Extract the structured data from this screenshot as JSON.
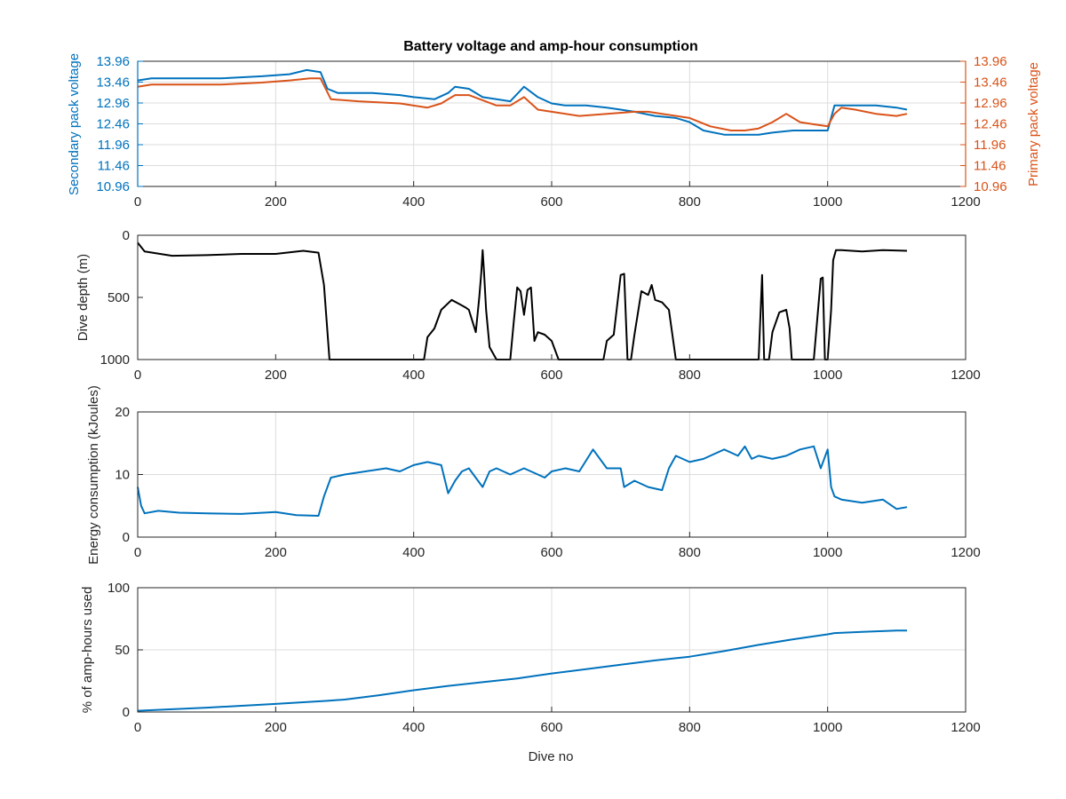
{
  "figure": {
    "title": "Battery voltage and amp-hour consumption"
  },
  "chart_data": [
    {
      "type": "line",
      "title": "Battery voltage and amp-hour consumption",
      "xlabel": "",
      "ylabel": "Secondary pack voltage",
      "y2label": "Primary pack voltage",
      "xlim": [
        0,
        1200
      ],
      "ylim": [
        10.96,
        13.96
      ],
      "y2lim": [
        10.96,
        13.96
      ],
      "xticks": [
        "0",
        "200",
        "400",
        "600",
        "800",
        "1000",
        "1200"
      ],
      "yticks": [
        "10.96",
        "11.46",
        "11.96",
        "12.46",
        "12.96",
        "13.46",
        "13.96"
      ],
      "y2ticks": [
        "10.96",
        "11.46",
        "11.96",
        "12.46",
        "12.96",
        "13.46",
        "13.96"
      ],
      "grid": true,
      "colors": {
        "secondary": "#0072BD",
        "primary": "#D95319"
      },
      "series": [
        {
          "axis": "left",
          "color": "#0072BD",
          "x": [
            0,
            20,
            60,
            120,
            180,
            220,
            245,
            265,
            275,
            290,
            340,
            380,
            400,
            430,
            450,
            460,
            480,
            500,
            520,
            540,
            560,
            580,
            600,
            620,
            650,
            680,
            700,
            720,
            750,
            780,
            800,
            820,
            850,
            880,
            900,
            920,
            950,
            980,
            1000,
            1010,
            1040,
            1070,
            1100,
            1115
          ],
          "y": [
            13.5,
            13.55,
            13.55,
            13.55,
            13.6,
            13.65,
            13.75,
            13.7,
            13.3,
            13.2,
            13.2,
            13.15,
            13.1,
            13.05,
            13.2,
            13.35,
            13.3,
            13.1,
            13.05,
            13.0,
            13.35,
            13.1,
            12.95,
            12.9,
            12.9,
            12.85,
            12.8,
            12.75,
            12.65,
            12.6,
            12.5,
            12.3,
            12.2,
            12.2,
            12.2,
            12.25,
            12.3,
            12.3,
            12.3,
            12.9,
            12.9,
            12.9,
            12.85,
            12.8
          ]
        },
        {
          "axis": "right",
          "color": "#D95319",
          "x": [
            0,
            20,
            60,
            120,
            180,
            220,
            250,
            265,
            280,
            320,
            380,
            420,
            440,
            460,
            480,
            520,
            540,
            560,
            580,
            600,
            640,
            680,
            720,
            740,
            760,
            800,
            830,
            860,
            880,
            900,
            920,
            940,
            960,
            980,
            1000,
            1010,
            1020,
            1040,
            1070,
            1100,
            1115
          ],
          "y": [
            13.35,
            13.4,
            13.4,
            13.4,
            13.45,
            13.5,
            13.55,
            13.55,
            13.05,
            13.0,
            12.95,
            12.85,
            12.95,
            13.15,
            13.15,
            12.9,
            12.9,
            13.1,
            12.8,
            12.75,
            12.65,
            12.7,
            12.75,
            12.75,
            12.7,
            12.6,
            12.4,
            12.3,
            12.3,
            12.35,
            12.5,
            12.7,
            12.5,
            12.45,
            12.4,
            12.7,
            12.85,
            12.8,
            12.7,
            12.65,
            12.7
          ]
        }
      ]
    },
    {
      "type": "line",
      "xlabel": "",
      "ylabel": "Dive depth (m)",
      "xlim": [
        0,
        1200
      ],
      "ylim": [
        1000,
        0
      ],
      "xticks": [
        "0",
        "200",
        "400",
        "600",
        "800",
        "1000",
        "1200"
      ],
      "yticks": [
        "0",
        "500",
        "1000"
      ],
      "grid": false,
      "series": [
        {
          "color": "#000000",
          "x": [
            0,
            10,
            50,
            100,
            150,
            200,
            240,
            262,
            270,
            278,
            300,
            350,
            400,
            415,
            420,
            430,
            440,
            455,
            465,
            475,
            480,
            490,
            495,
            498,
            500,
            502,
            505,
            510,
            520,
            540,
            545,
            550,
            555,
            560,
            565,
            570,
            575,
            580,
            590,
            600,
            610,
            650,
            675,
            680,
            690,
            700,
            705,
            710,
            715,
            720,
            730,
            740,
            745,
            750,
            760,
            770,
            780,
            800,
            850,
            900,
            905,
            908,
            912,
            915,
            920,
            930,
            940,
            945,
            948,
            950,
            960,
            980,
            990,
            993,
            996,
            1000,
            1005,
            1008,
            1012,
            1020,
            1050,
            1080,
            1115
          ],
          "y": [
            60,
            130,
            165,
            160,
            150,
            150,
            125,
            140,
            400,
            1000,
            1000,
            1000,
            1000,
            1000,
            820,
            750,
            600,
            520,
            550,
            580,
            600,
            780,
            500,
            300,
            120,
            300,
            600,
            900,
            1000,
            1000,
            700,
            420,
            450,
            640,
            440,
            420,
            850,
            780,
            800,
            850,
            1000,
            1000,
            1000,
            850,
            800,
            320,
            310,
            1000,
            1000,
            800,
            450,
            480,
            400,
            520,
            540,
            600,
            1000,
            1000,
            1000,
            1000,
            320,
            1000,
            1000,
            1000,
            780,
            620,
            600,
            750,
            1000,
            1000,
            1000,
            1000,
            350,
            340,
            1000,
            1000,
            600,
            200,
            120,
            120,
            130,
            120,
            125
          ]
        }
      ]
    },
    {
      "type": "line",
      "xlabel": "",
      "ylabel": "Energy consumption (kJoules)",
      "xlim": [
        0,
        1200
      ],
      "ylim": [
        0,
        20
      ],
      "xticks": [
        "0",
        "200",
        "400",
        "600",
        "800",
        "1000",
        "1200"
      ],
      "yticks": [
        "0",
        "10",
        "20"
      ],
      "grid": true,
      "series": [
        {
          "color": "#0072BD",
          "x": [
            0,
            5,
            10,
            30,
            60,
            100,
            150,
            200,
            230,
            262,
            270,
            280,
            300,
            330,
            360,
            380,
            400,
            420,
            440,
            450,
            460,
            470,
            480,
            500,
            510,
            520,
            540,
            560,
            580,
            590,
            600,
            620,
            640,
            660,
            680,
            700,
            705,
            720,
            740,
            760,
            770,
            780,
            800,
            820,
            850,
            870,
            880,
            890,
            900,
            920,
            940,
            960,
            980,
            990,
            1000,
            1005,
            1010,
            1020,
            1050,
            1080,
            1100,
            1115
          ],
          "y": [
            8.0,
            5.0,
            3.8,
            4.2,
            3.9,
            3.8,
            3.7,
            4.0,
            3.5,
            3.4,
            6.5,
            9.5,
            10.0,
            10.5,
            11.0,
            10.5,
            11.5,
            12.0,
            11.5,
            7.0,
            9.0,
            10.5,
            11.0,
            8.0,
            10.5,
            11.0,
            10.0,
            11.0,
            10.0,
            9.5,
            10.5,
            11.0,
            10.5,
            14.0,
            11.0,
            11.0,
            8.0,
            9.0,
            8.0,
            7.5,
            11.0,
            13.0,
            12.0,
            12.5,
            14.0,
            13.0,
            14.5,
            12.5,
            13.0,
            12.5,
            13.0,
            14.0,
            14.5,
            11.0,
            14.0,
            8.0,
            6.5,
            6.0,
            5.5,
            6.0,
            4.5,
            4.8
          ]
        }
      ]
    },
    {
      "type": "line",
      "xlabel": "Dive no",
      "ylabel": "% of amp-hours used",
      "xlim": [
        0,
        1200
      ],
      "ylim": [
        0,
        100
      ],
      "xticks": [
        "0",
        "200",
        "400",
        "600",
        "800",
        "1000",
        "1200"
      ],
      "yticks": [
        "0",
        "50",
        "100"
      ],
      "grid": true,
      "series": [
        {
          "color": "#0072BD",
          "x": [
            0,
            100,
            200,
            275,
            300,
            350,
            400,
            450,
            500,
            550,
            600,
            650,
            700,
            750,
            800,
            850,
            900,
            950,
            1000,
            1010,
            1050,
            1100,
            1115
          ],
          "y": [
            1,
            3.5,
            6.5,
            9,
            10,
            13.5,
            17.5,
            21,
            24,
            27,
            31,
            34.5,
            38,
            41.5,
            44.5,
            49,
            54,
            58.5,
            62.5,
            63.5,
            64.5,
            65.5,
            65.5
          ]
        }
      ]
    }
  ]
}
